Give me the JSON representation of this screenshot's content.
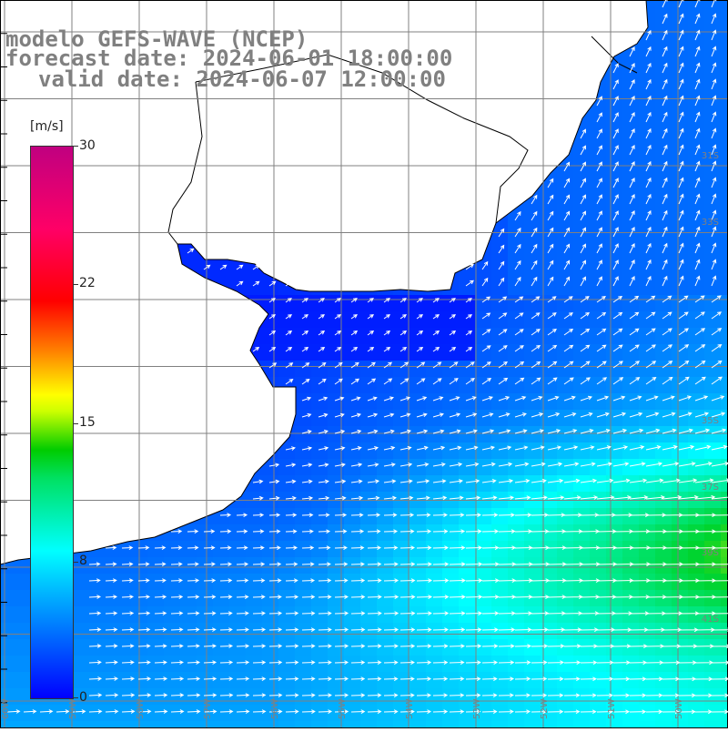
{
  "title": {
    "model": "modelo GEFS-WAVE (NCEP)",
    "forecast": "forecast date: 2024-06-01 18:00:00",
    "valid": "valid date: 2024-06-07 12:00:00"
  },
  "colorbar": {
    "unit": "[m/s]",
    "ticks": [
      "30",
      "22",
      "15",
      "8",
      "0"
    ],
    "tick_values": [
      30,
      22,
      15,
      8,
      0
    ],
    "min": 0,
    "max": 30,
    "colors": [
      "#0000ff",
      "#00aaff",
      "#00ffff",
      "#00cc00",
      "#ffff00",
      "#ff8000",
      "#ff0000",
      "#c00080"
    ]
  },
  "map": {
    "land_color": "#ffffff",
    "coast_color": "#000000",
    "grid_color": "#808080",
    "arrow_color": "#ffffff",
    "lat_labels": [
      "31S",
      "33S",
      "35S",
      "37S",
      "39S",
      "41S"
    ],
    "lon_labels": [
      "60W",
      "59W",
      "58W",
      "57W",
      "56W",
      "55W",
      "54W",
      "53W",
      "52W",
      "51W",
      "50W"
    ]
  }
}
